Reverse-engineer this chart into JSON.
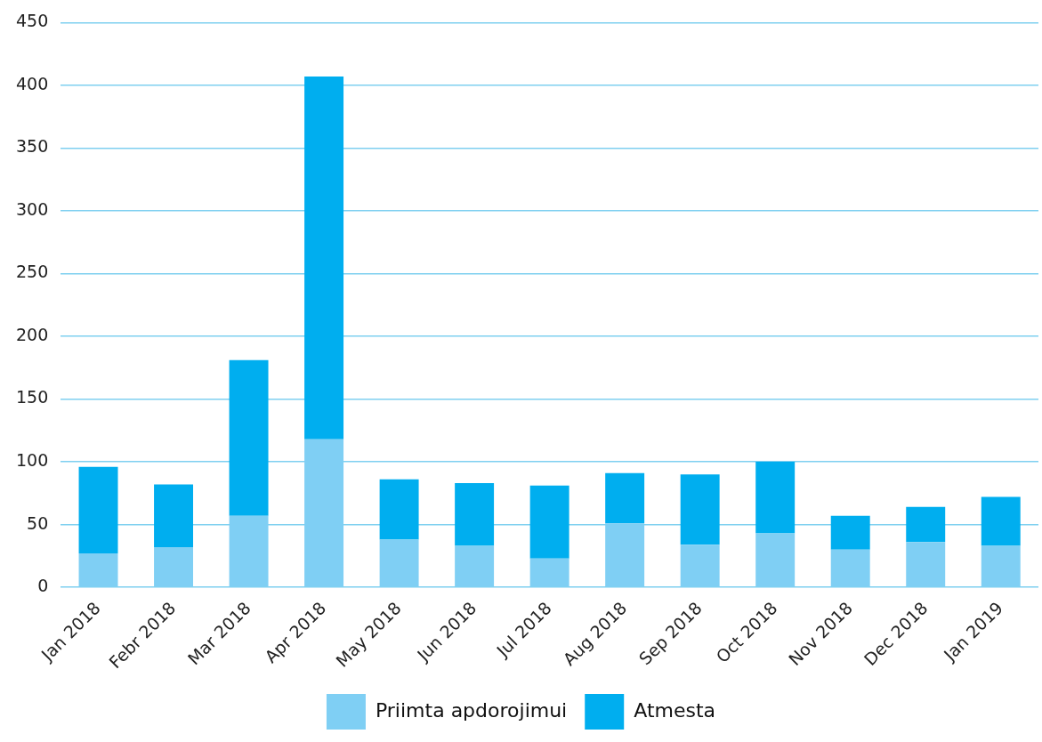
{
  "chart_data": {
    "type": "bar",
    "stacked": true,
    "categories": [
      "Jan 2018",
      "Febr 2018",
      "Mar 2018",
      "Apr 2018",
      "May 2018",
      "Jun 2018",
      "Jul 2018",
      "Aug 2018",
      "Sep 2018",
      "Oct 2018",
      "Nov 2018",
      "Dec 2018",
      "Jan 2019"
    ],
    "series": [
      {
        "name": "Priimta apdorojimui",
        "color": "#7fcff4",
        "values": [
          27,
          32,
          57,
          118,
          38,
          33,
          23,
          51,
          34,
          43,
          30,
          36,
          33
        ]
      },
      {
        "name": "Atmesta",
        "color": "#00aeef",
        "values": [
          69,
          50,
          124,
          289,
          48,
          50,
          58,
          40,
          56,
          57,
          27,
          28,
          39
        ]
      }
    ],
    "ylim": [
      0,
      450
    ],
    "yticks": [
      0,
      50,
      100,
      150,
      200,
      250,
      300,
      350,
      400,
      450
    ],
    "grid": "y",
    "legend": "bottom"
  }
}
